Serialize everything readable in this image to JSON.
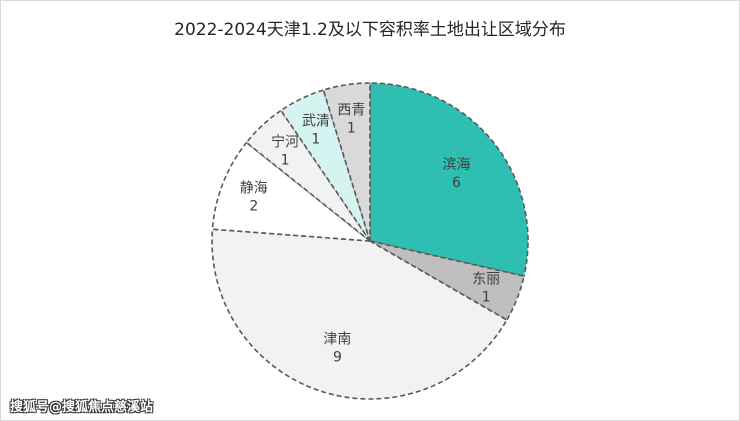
{
  "chart_data": {
    "type": "pie",
    "title": "2022-2024天津1.2及以下容积率土地出让区域分布",
    "slices": [
      {
        "label": "滨海",
        "value": 6,
        "color": "#2fbfb2"
      },
      {
        "label": "东丽",
        "value": 1,
        "color": "#bfbfbf"
      },
      {
        "label": "津南",
        "value": 9,
        "color": "#f2f2f2"
      },
      {
        "label": "静海",
        "value": 2,
        "color": "#ffffff"
      },
      {
        "label": "宁河",
        "value": 1,
        "color": "#f2f2f2"
      },
      {
        "label": "武清",
        "value": 1,
        "color": "#d5f3f0"
      },
      {
        "label": "西青",
        "value": 1,
        "color": "#d9d9d9"
      }
    ]
  },
  "watermark": "搜狐号@搜狐焦点慈溪站"
}
